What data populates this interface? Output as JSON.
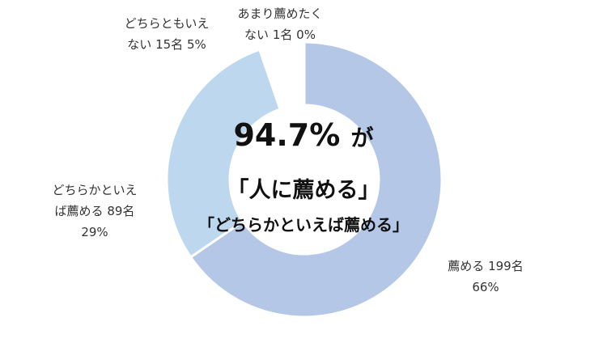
{
  "chart_data": {
    "type": "donut",
    "categories": [
      "薦める",
      "どちらかといえば薦める",
      "どちらともいえない",
      "あまり薦めたくない"
    ],
    "values": [
      199,
      89,
      15,
      1
    ],
    "value_labels": [
      "199名",
      "89名",
      "15名",
      "1名"
    ],
    "percent_labels": [
      "66%",
      "29%",
      "5%",
      "0%"
    ],
    "colors": [
      "#b4c7e7",
      "#bdd7ee",
      "#ffffff",
      "#ffffff"
    ],
    "center_text": {
      "figure": "94.7%",
      "suffix": "が",
      "line2": "「人に薦める」",
      "line3": "「どちらかといえば薦める」"
    }
  }
}
